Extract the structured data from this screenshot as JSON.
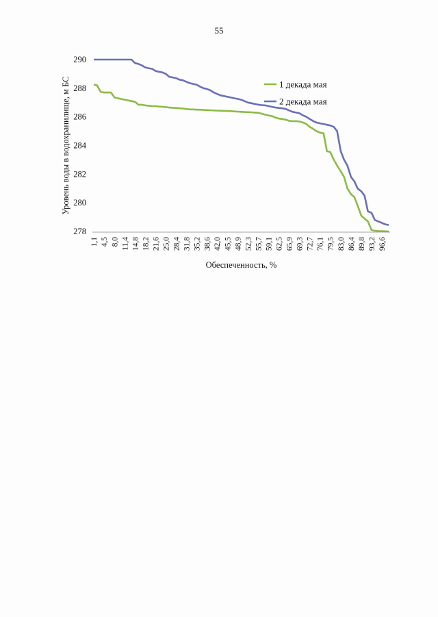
{
  "page": {
    "number": "55"
  },
  "chart_data": {
    "type": "line",
    "title": "",
    "xlabel": "Обеспеченность, %",
    "ylabel": "Уровень воды в водохранилище, м БС",
    "ylim": [
      278,
      290
    ],
    "yticks": [
      "278",
      "280",
      "282",
      "284",
      "286",
      "288",
      "290"
    ],
    "x_tick_labels": [
      "1,1",
      "4,5",
      "8,0",
      "11,4",
      "14,8",
      "18,2",
      "21,6",
      "25,0",
      "28,4",
      "31,8",
      "35,2",
      "38,6",
      "42,0",
      "45,5",
      "48,9",
      "52,3",
      "55,7",
      "59,1",
      "62,5",
      "65,9",
      "69,3",
      "72,7",
      "76,1",
      "79,5",
      "83,0",
      "86,4",
      "89,8",
      "93,2",
      "96,6"
    ],
    "x": [
      1.1,
      2.2,
      3.4,
      4.5,
      5.7,
      6.8,
      8.0,
      9.1,
      10.2,
      11.4,
      12.5,
      13.6,
      14.8,
      15.9,
      17.0,
      18.2,
      19.3,
      20.5,
      21.6,
      22.7,
      23.9,
      25.0,
      26.1,
      27.3,
      28.4,
      29.5,
      30.7,
      31.8,
      33.0,
      34.1,
      35.2,
      36.4,
      37.5,
      38.6,
      39.8,
      40.9,
      42.0,
      43.2,
      44.3,
      45.5,
      46.6,
      47.7,
      48.9,
      50.0,
      51.1,
      52.3,
      53.4,
      54.5,
      55.7,
      56.8,
      58.0,
      59.1,
      60.2,
      61.4,
      62.5,
      63.6,
      64.8,
      65.9,
      67.0,
      68.2,
      69.3,
      70.5,
      71.6,
      72.7,
      73.9,
      75.0,
      76.1,
      77.3,
      78.4,
      79.5,
      80.7,
      81.8,
      83.0,
      84.1,
      85.2,
      86.4,
      87.5,
      88.6,
      89.8,
      90.9,
      92.0,
      93.2,
      94.3,
      95.5,
      96.6,
      97.7,
      98.9
    ],
    "series": [
      {
        "name": "1 декада мая",
        "color": "#8cbb45",
        "values": [
          288.25,
          288.2,
          287.75,
          287.7,
          287.7,
          287.7,
          287.35,
          287.3,
          287.25,
          287.2,
          287.15,
          287.1,
          287.05,
          286.85,
          286.85,
          286.8,
          286.78,
          286.75,
          286.75,
          286.72,
          286.7,
          286.68,
          286.65,
          286.63,
          286.62,
          286.6,
          286.58,
          286.55,
          286.52,
          286.52,
          286.5,
          286.5,
          286.48,
          286.47,
          286.46,
          286.45,
          286.44,
          286.43,
          286.42,
          286.41,
          286.4,
          286.38,
          286.36,
          286.35,
          286.34,
          286.33,
          286.32,
          286.3,
          286.28,
          286.22,
          286.15,
          286.1,
          286.05,
          285.95,
          285.88,
          285.85,
          285.8,
          285.72,
          285.7,
          285.7,
          285.68,
          285.6,
          285.5,
          285.3,
          285.15,
          285.0,
          284.9,
          284.85,
          283.6,
          283.55,
          283.0,
          282.6,
          282.2,
          281.8,
          281.0,
          280.6,
          280.4,
          279.8,
          279.1,
          278.9,
          278.7,
          278.1,
          278.05,
          278.03,
          278.02,
          278.01,
          278.0
        ]
      },
      {
        "name": "2 декада мая",
        "color": "#6a6fb8",
        "values": [
          290.0,
          290.0,
          290.0,
          290.0,
          290.0,
          290.0,
          290.0,
          290.0,
          290.0,
          290.0,
          290.0,
          290.0,
          289.75,
          289.7,
          289.6,
          289.45,
          289.4,
          289.35,
          289.2,
          289.15,
          289.1,
          289.0,
          288.8,
          288.75,
          288.7,
          288.6,
          288.55,
          288.45,
          288.35,
          288.3,
          288.25,
          288.1,
          288.0,
          287.95,
          287.85,
          287.7,
          287.6,
          287.5,
          287.45,
          287.4,
          287.35,
          287.3,
          287.25,
          287.2,
          287.1,
          287.0,
          286.95,
          286.9,
          286.85,
          286.82,
          286.8,
          286.75,
          286.7,
          286.65,
          286.62,
          286.6,
          286.55,
          286.45,
          286.35,
          286.3,
          286.25,
          286.1,
          286.0,
          285.85,
          285.7,
          285.6,
          285.55,
          285.5,
          285.45,
          285.4,
          285.3,
          285.0,
          283.6,
          283.0,
          282.6,
          281.8,
          281.5,
          281.0,
          280.8,
          280.5,
          279.4,
          279.3,
          278.8,
          278.7,
          278.6,
          278.5,
          278.45
        ]
      }
    ],
    "legend": "top-right",
    "grid": false
  }
}
